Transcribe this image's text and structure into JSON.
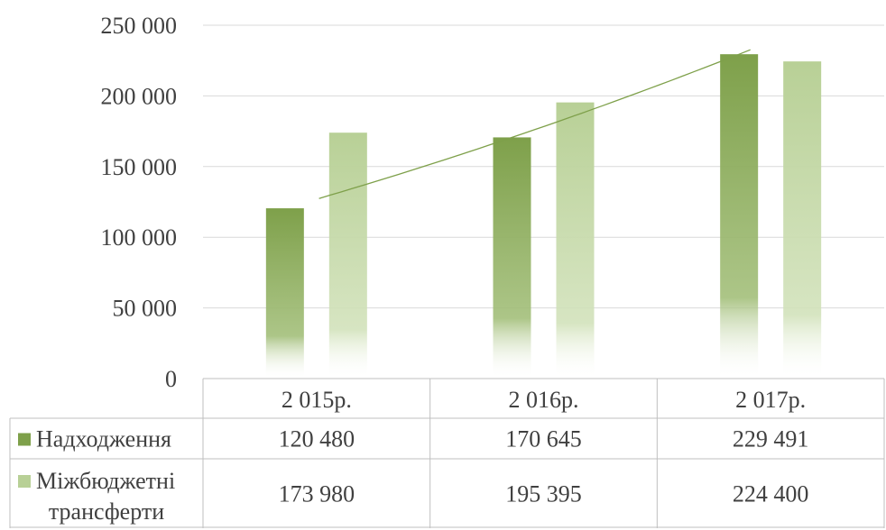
{
  "chart_data": {
    "type": "bar",
    "categories": [
      "2 015р.",
      "2 016р.",
      "2 017р."
    ],
    "series": [
      {
        "name": "Надходження",
        "values": [
          120480,
          170645,
          229491
        ],
        "labels": [
          "120 480",
          "170 645",
          "229 491"
        ],
        "color": "#7ea04a"
      },
      {
        "name_lines": [
          "Міжбюджетні",
          "трансферти"
        ],
        "values": [
          173980,
          195395,
          224400
        ],
        "labels": [
          "173 980",
          "195 395",
          "224 400"
        ],
        "color": "#b8d096"
      }
    ],
    "ylim": [
      0,
      250000
    ],
    "yticks": [
      0,
      50000,
      100000,
      150000,
      200000,
      250000
    ],
    "ytick_labels": [
      "0",
      "50 000",
      "100 000",
      "150 000",
      "200 000",
      "250 000"
    ],
    "trendline": {
      "series": 0,
      "type": "polynomial",
      "color": "#7ea04a"
    },
    "grid": true,
    "legend": "data-table"
  }
}
